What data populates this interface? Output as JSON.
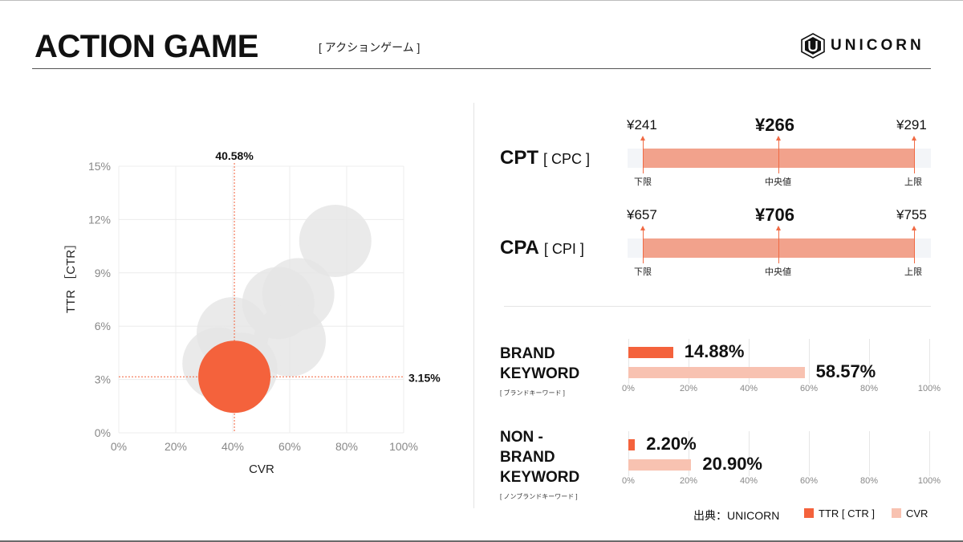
{
  "header": {
    "title": "ACTION GAME",
    "subtitle": "[ アクションゲーム ]",
    "logo_text": "UNICORN"
  },
  "chart_data": [
    {
      "type": "scatter",
      "title": "",
      "xlabel": "CVR",
      "ylabel": "TTR ［CTR］",
      "xlim": [
        0,
        100
      ],
      "ylim": [
        0,
        15
      ],
      "x_ticks": [
        "0%",
        "20%",
        "40%",
        "60%",
        "80%",
        "100%"
      ],
      "y_ticks": [
        "0%",
        "3%",
        "6%",
        "9%",
        "12%",
        "15%"
      ],
      "grid": true,
      "reference_lines": {
        "x": 40.58,
        "x_label": "40.58%",
        "y": 3.15,
        "y_label": "3.15%"
      },
      "points": [
        {
          "x": 76,
          "y": 10.8,
          "highlight": false
        },
        {
          "x": 63,
          "y": 7.8,
          "highlight": false
        },
        {
          "x": 56,
          "y": 7.3,
          "highlight": false
        },
        {
          "x": 60,
          "y": 5.2,
          "highlight": false
        },
        {
          "x": 40,
          "y": 5.6,
          "highlight": false
        },
        {
          "x": 35,
          "y": 3.9,
          "highlight": false
        },
        {
          "x": 43,
          "y": 3.6,
          "highlight": false
        },
        {
          "x": 40.58,
          "y": 3.15,
          "highlight": true
        }
      ],
      "colors": {
        "highlight": "#f4623c",
        "other": "#e5e5e5"
      }
    },
    {
      "type": "bar",
      "title": "BRAND KEYWORD",
      "subtitle": "[ ブランドキーワード ]",
      "xlim": [
        0,
        100
      ],
      "x_ticks": [
        "0%",
        "20%",
        "40%",
        "60%",
        "80%",
        "100%"
      ],
      "series": [
        {
          "name": "TTR [ CTR ]",
          "value": 14.88,
          "label": "14.88%"
        },
        {
          "name": "CVR",
          "value": 58.57,
          "label": "58.57%"
        }
      ]
    },
    {
      "type": "bar",
      "title_lines": [
        "NON -",
        "BRAND",
        "KEYWORD"
      ],
      "subtitle": "[ ノンブランドキーワード ]",
      "xlim": [
        0,
        100
      ],
      "x_ticks": [
        "0%",
        "20%",
        "40%",
        "60%",
        "80%",
        "100%"
      ],
      "series": [
        {
          "name": "TTR [ CTR ]",
          "value": 2.2,
          "label": "2.20%"
        },
        {
          "name": "CVR",
          "value": 20.9,
          "label": "20.90%"
        }
      ]
    }
  ],
  "metrics": [
    {
      "label": "CPT",
      "sub": "[ CPC ]",
      "low": "¥241",
      "mid": "¥266",
      "high": "¥291",
      "low_caption": "下限",
      "mid_caption": "中央値",
      "high_caption": "上限"
    },
    {
      "label": "CPA",
      "sub": "[ CPI ]",
      "low": "¥657",
      "mid": "¥706",
      "high": "¥755",
      "low_caption": "下限",
      "mid_caption": "中央値",
      "high_caption": "上限"
    }
  ],
  "footer": {
    "source": "出典：UNICORN",
    "legend_ttr": "TTR [ CTR ]",
    "legend_cvr": "CVR"
  },
  "colors": {
    "accent": "#f4623c",
    "cvr": "#f8c2b1",
    "range_bar": "#f2a28c"
  }
}
